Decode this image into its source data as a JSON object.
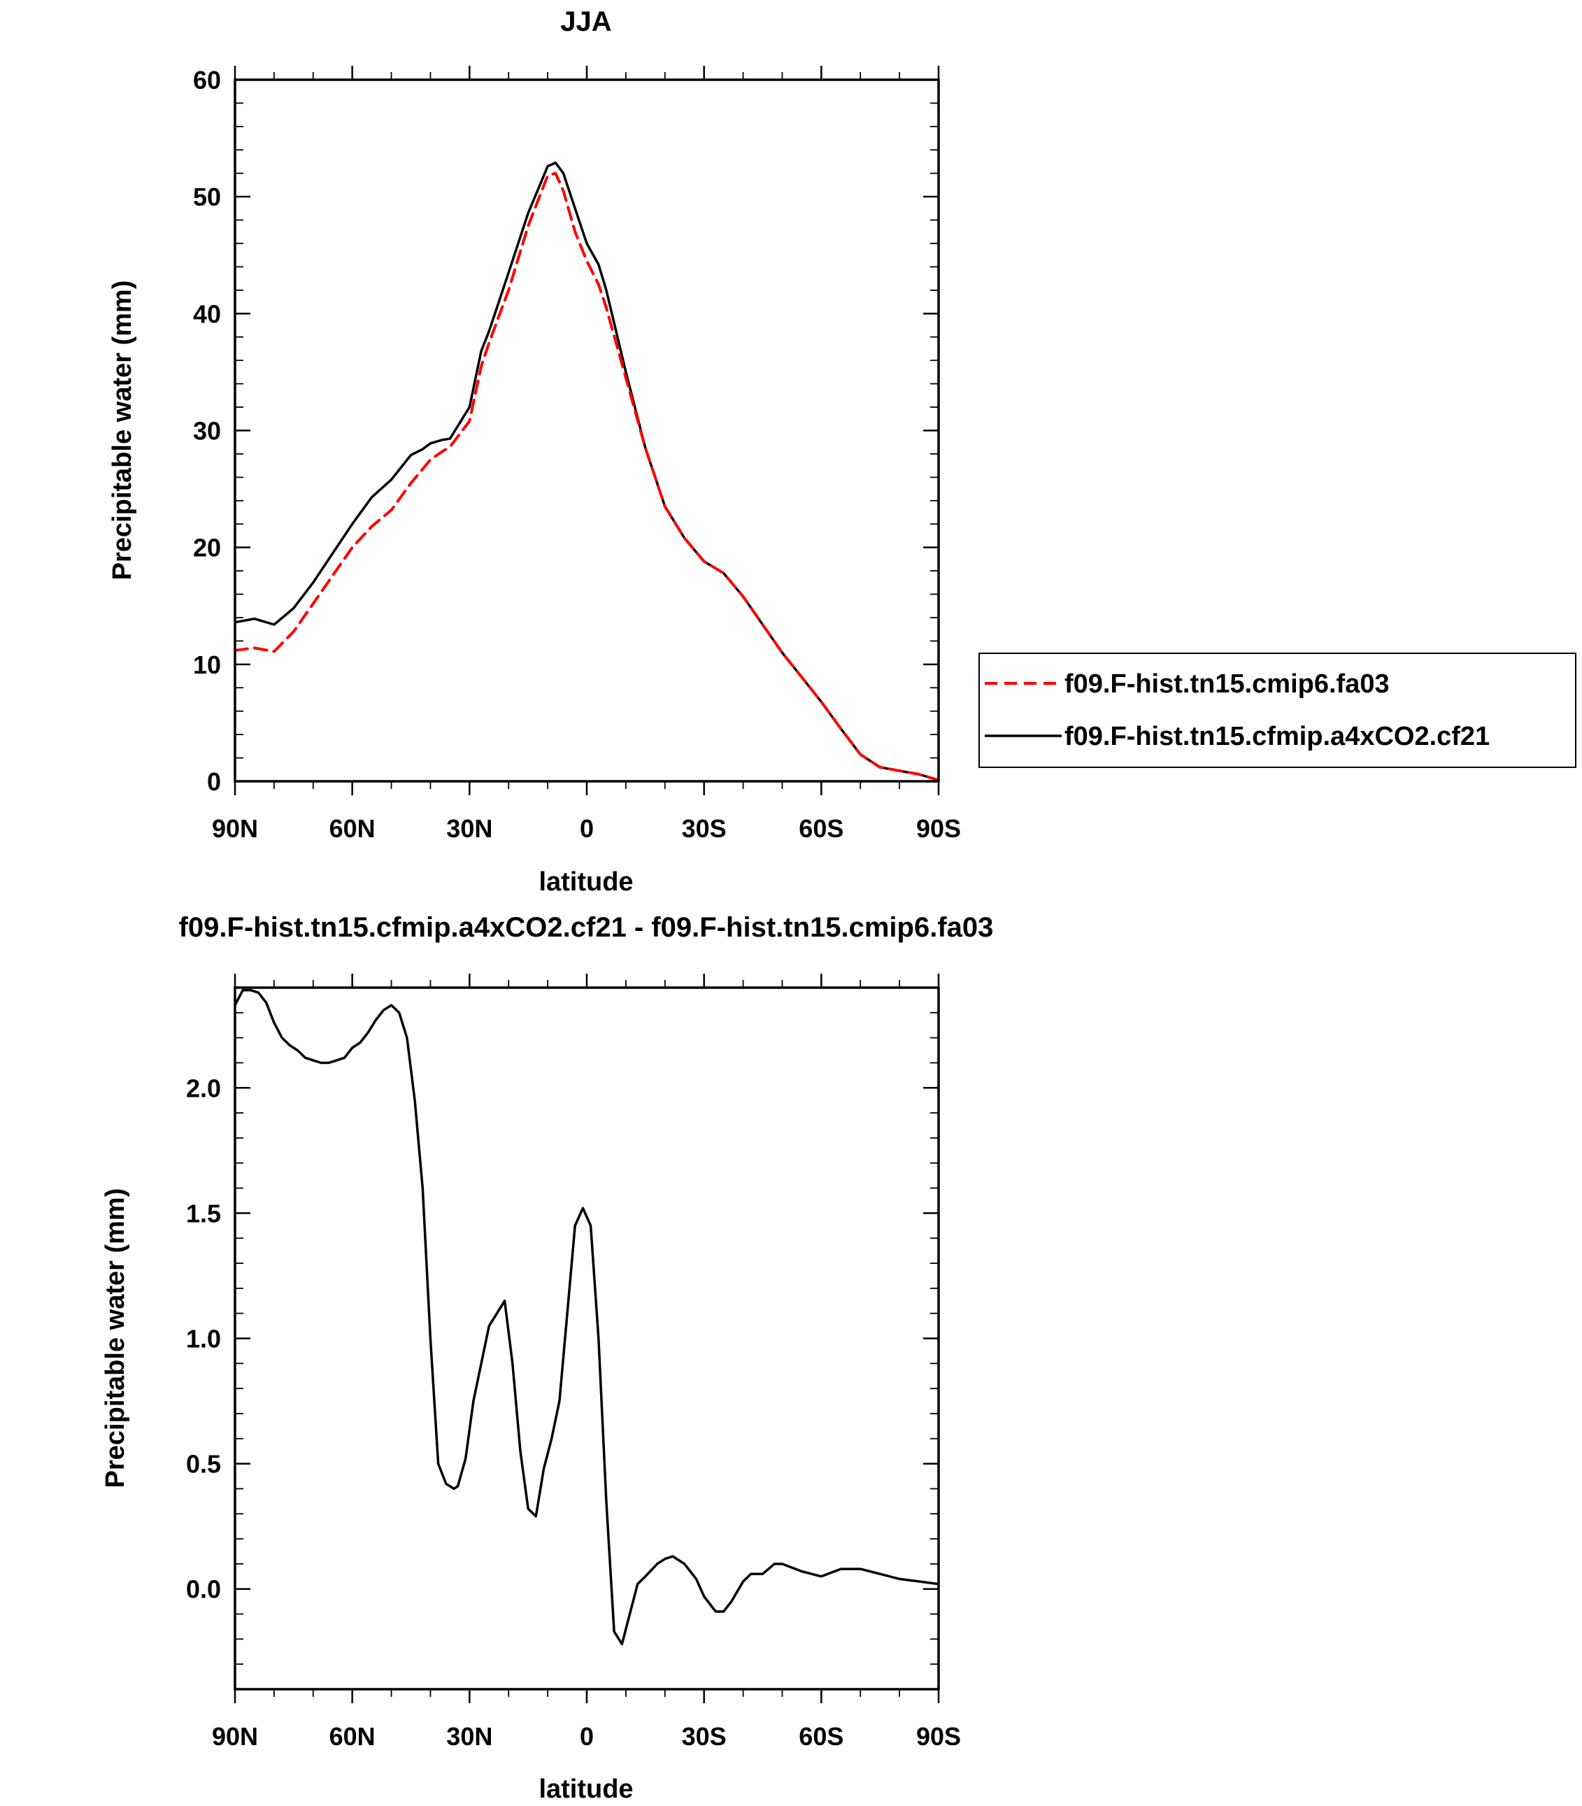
{
  "chart_data": [
    {
      "type": "line",
      "title": "JJA",
      "xlabel": "latitude",
      "ylabel": "Precipitable water (mm)",
      "xlim": [
        90,
        -90
      ],
      "ylim": [
        0,
        60
      ],
      "xticks": [
        90,
        60,
        30,
        0,
        -30,
        -60,
        -90
      ],
      "xtick_labels": [
        "90N",
        "60N",
        "30N",
        "0",
        "30S",
        "60S",
        "90S"
      ],
      "yticks": [
        0,
        10,
        20,
        30,
        40,
        50,
        60
      ],
      "ytick_labels": [
        "0",
        "10",
        "20",
        "30",
        "40",
        "50",
        "60"
      ],
      "legend_position": "outside-right",
      "series": [
        {
          "name": "f09.F-hist.tn15.cmip6.fa03",
          "color": "#ff0000",
          "dash": "dashed",
          "x": [
            90,
            85,
            80,
            75,
            70,
            65,
            60,
            55,
            50,
            45,
            40,
            37,
            35,
            30,
            27,
            25,
            20,
            15,
            10,
            8,
            6,
            3,
            0,
            -3,
            -5,
            -10,
            -15,
            -20,
            -25,
            -30,
            -35,
            -40,
            -45,
            -50,
            -55,
            -60,
            -65,
            -70,
            -75,
            -80,
            -85,
            -90
          ],
          "y": [
            11.2,
            11.4,
            11.1,
            12.8,
            15.2,
            17.6,
            20.0,
            21.8,
            23.2,
            25.5,
            27.5,
            28.2,
            28.6,
            30.8,
            35.5,
            37.5,
            42.0,
            47.5,
            51.8,
            52.0,
            50.5,
            47.0,
            44.5,
            42.5,
            40.5,
            34.5,
            28.5,
            23.5,
            20.8,
            18.8,
            17.8,
            15.8,
            13.4,
            11.0,
            8.9,
            6.8,
            4.5,
            2.3,
            1.2,
            0.9,
            0.6,
            0.1
          ]
        },
        {
          "name": "f09.F-hist.tn15.cfmip.a4xCO2.cf21",
          "color": "#000000",
          "dash": "solid",
          "x": [
            90,
            85,
            80,
            75,
            70,
            65,
            60,
            55,
            50,
            45,
            42,
            40,
            37,
            35,
            30,
            27,
            25,
            20,
            15,
            10,
            8,
            6,
            3,
            0,
            -3,
            -5,
            -10,
            -15,
            -20,
            -25,
            -30,
            -35,
            -40,
            -45,
            -50,
            -55,
            -60,
            -65,
            -70,
            -75,
            -80,
            -85,
            -90
          ],
          "y": [
            13.6,
            13.9,
            13.4,
            14.8,
            17.0,
            19.5,
            22.0,
            24.3,
            25.8,
            27.9,
            28.4,
            28.9,
            29.2,
            29.3,
            32.0,
            36.8,
            38.5,
            43.5,
            48.6,
            52.6,
            52.9,
            52.0,
            49.0,
            46.0,
            44.2,
            42.0,
            35.0,
            28.5,
            23.5,
            20.8,
            18.8,
            17.8,
            15.8,
            13.4,
            11.0,
            8.9,
            6.8,
            4.5,
            2.3,
            1.2,
            0.9,
            0.6,
            0.1
          ]
        }
      ]
    },
    {
      "type": "line",
      "title": "f09.F-hist.tn15.cfmip.a4xCO2.cf21 - f09.F-hist.tn15.cmip6.fa03",
      "xlabel": "latitude",
      "ylabel": "Precipitable water (mm)",
      "xlim": [
        90,
        -90
      ],
      "ylim": [
        -0.4,
        2.4
      ],
      "xticks": [
        90,
        60,
        30,
        0,
        -30,
        -60,
        -90
      ],
      "xtick_labels": [
        "90N",
        "60N",
        "30N",
        "0",
        "30S",
        "60S",
        "90S"
      ],
      "yticks": [
        0,
        0.5,
        1,
        1.5,
        2
      ],
      "ytick_labels": [
        "0.0",
        "0.5",
        "1.0",
        "1.5",
        "2.0"
      ],
      "series": [
        {
          "color": "#000000",
          "dash": "solid",
          "x": [
            90,
            88,
            86,
            84,
            82,
            80,
            78,
            76,
            74,
            72,
            70,
            68,
            66,
            64,
            62,
            60,
            58,
            56,
            54,
            52,
            50,
            48,
            46,
            44,
            42,
            40,
            38,
            36,
            34,
            33,
            31,
            29,
            27,
            25,
            23,
            21,
            19,
            17,
            15,
            13,
            11,
            9,
            7,
            5,
            3,
            1,
            -1,
            -3,
            -5,
            -7,
            -9,
            -11,
            -13,
            -15,
            -18,
            -20,
            -22,
            -25,
            -28,
            -30,
            -33,
            -35,
            -37,
            -40,
            -42,
            -45,
            -48,
            -50,
            -55,
            -60,
            -65,
            -70,
            -75,
            -80,
            -85,
            -90
          ],
          "y": [
            2.33,
            2.39,
            2.39,
            2.38,
            2.34,
            2.26,
            2.2,
            2.17,
            2.15,
            2.12,
            2.11,
            2.1,
            2.1,
            2.11,
            2.12,
            2.16,
            2.18,
            2.22,
            2.27,
            2.31,
            2.33,
            2.3,
            2.2,
            1.95,
            1.6,
            1.0,
            0.5,
            0.42,
            0.4,
            0.41,
            0.52,
            0.75,
            0.9,
            1.05,
            1.1,
            1.15,
            0.9,
            0.55,
            0.32,
            0.29,
            0.48,
            0.6,
            0.75,
            1.1,
            1.45,
            1.52,
            1.45,
            1.0,
            0.35,
            -0.17,
            -0.22,
            -0.1,
            0.02,
            0.05,
            0.1,
            0.12,
            0.13,
            0.1,
            0.04,
            -0.03,
            -0.09,
            -0.09,
            -0.05,
            0.03,
            0.06,
            0.06,
            0.1,
            0.1,
            0.07,
            0.05,
            0.08,
            0.08,
            0.06,
            0.04,
            0.03,
            0.02
          ]
        }
      ]
    }
  ]
}
